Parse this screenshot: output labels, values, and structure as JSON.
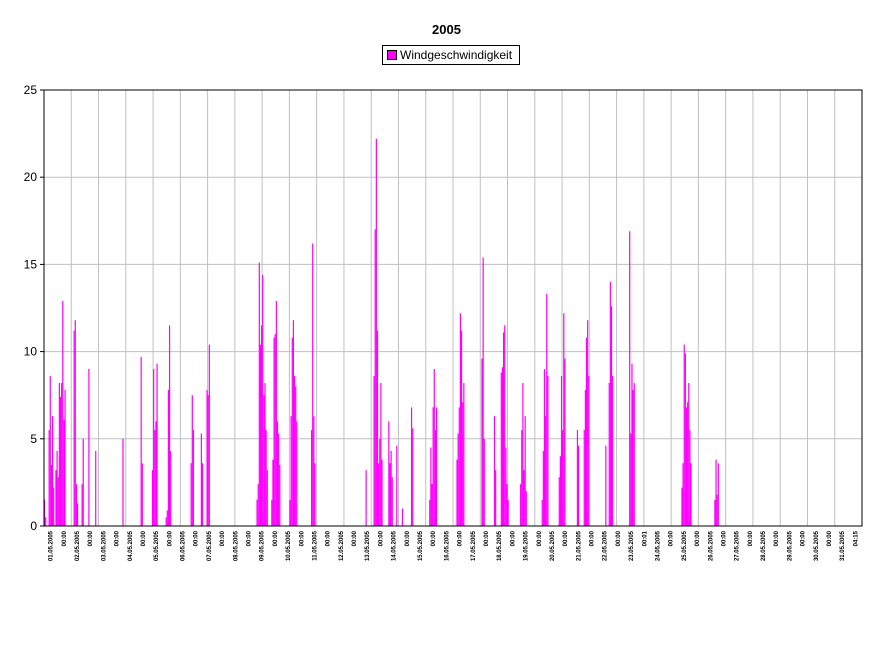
{
  "chart_data": {
    "type": "bar",
    "title": "2005",
    "xlabel": "",
    "ylabel": "",
    "ylim": [
      0,
      25
    ],
    "yticks": [
      0,
      5,
      10,
      15,
      20,
      25
    ],
    "grid": true,
    "legend_position": "top-center",
    "series": [
      {
        "name": "Windgeschwindigkeit",
        "color": "#ff00ff",
        "start_label": "01.05.2005",
        "end_label": "31.05.2005 04:15",
        "hours": [
          1.5,
          0.5,
          0,
          0,
          5.5,
          8.6,
          3.5,
          6.3,
          2.2,
          0,
          3.2,
          4.3,
          2.8,
          8.2,
          7.4,
          8.2,
          12.9,
          6.1,
          7.8,
          0,
          0,
          0,
          0,
          0,
          0,
          0,
          11.2,
          11.8,
          2.4,
          1.3,
          0,
          0,
          0,
          2.4,
          5.0,
          0,
          0,
          0,
          0,
          9.0,
          0,
          0,
          0,
          0,
          0,
          4.3,
          0,
          0,
          0,
          0,
          0,
          0,
          0,
          0,
          0,
          0,
          0,
          0,
          0,
          0,
          0,
          0,
          0,
          0,
          0,
          0,
          0,
          0,
          0,
          5.0,
          0,
          0,
          0,
          0,
          0,
          0,
          0,
          0,
          0,
          0,
          0,
          0,
          0,
          0,
          0,
          9.7,
          3.6,
          0,
          0,
          0,
          0,
          0,
          0,
          0,
          0,
          3.2,
          9.0,
          5.5,
          6.0,
          9.3,
          0,
          0,
          0,
          0,
          0,
          0,
          0,
          0.5,
          0.9,
          7.8,
          11.5,
          4.3,
          0,
          0,
          0,
          0,
          0,
          0,
          0,
          0,
          0,
          0,
          0,
          0,
          0,
          0,
          0,
          0,
          0,
          3.6,
          7.5,
          5.5,
          0,
          0,
          0,
          0,
          0,
          0,
          5.3,
          3.6,
          0,
          0,
          0,
          7.8,
          7.5,
          10.4,
          0,
          0,
          0,
          0,
          0,
          0,
          0,
          0,
          0,
          0,
          0,
          0,
          0,
          0,
          0,
          0,
          0,
          0,
          0,
          0,
          0,
          0,
          0,
          0,
          0,
          0,
          0,
          0,
          0,
          0,
          0,
          0,
          0,
          0,
          0,
          0,
          0,
          0,
          0,
          0,
          0,
          1.5,
          2.4,
          15.1,
          10.4,
          11.5,
          14.4,
          7.5,
          8.2,
          5.5,
          3.2,
          0,
          0,
          0,
          1.5,
          3.8,
          10.8,
          11.0,
          12.9,
          6.0,
          5.3,
          3.5,
          0,
          0,
          0,
          0,
          0,
          0,
          0,
          0,
          1.5,
          6.3,
          10.8,
          11.8,
          8.6,
          8.0,
          6.0,
          0,
          0,
          0,
          0,
          0,
          0,
          0,
          0,
          0,
          0,
          0,
          0,
          5.5,
          16.2,
          6.3,
          3.6,
          0,
          0,
          0,
          0,
          0,
          0,
          0,
          0,
          0,
          0,
          0,
          0,
          0,
          0,
          0,
          0,
          0,
          0,
          0,
          0,
          0,
          0,
          0,
          0,
          0,
          0,
          0,
          0,
          0,
          0,
          0,
          0,
          0,
          0,
          0,
          0,
          0,
          0,
          0,
          0,
          0,
          0,
          0,
          0,
          3.2,
          0,
          0,
          0,
          0,
          0,
          0,
          8.6,
          17.0,
          22.2,
          11.2,
          3.6,
          5.0,
          8.2,
          3.8,
          0,
          0,
          0,
          0,
          0,
          6.0,
          3.6,
          4.3,
          2.8,
          0,
          0,
          0,
          4.6,
          0,
          0,
          0,
          0,
          1.0,
          0,
          0,
          0,
          0,
          0,
          0,
          0,
          6.8,
          5.6,
          0,
          0,
          0,
          0,
          0,
          0,
          0,
          0,
          0,
          0,
          0,
          0,
          0,
          0,
          1.5,
          4.5,
          2.4,
          6.8,
          9.0,
          5.5,
          6.8,
          0,
          0,
          0,
          0,
          0,
          0,
          0,
          0,
          0,
          0,
          0,
          0,
          0,
          0,
          0,
          0,
          0,
          3.8,
          5.3,
          6.8,
          12.2,
          11.2,
          7.1,
          8.2,
          0,
          0,
          0,
          0,
          0,
          0,
          0,
          0,
          0,
          0,
          0,
          0,
          0,
          0,
          0,
          9.6,
          15.4,
          5.0,
          0,
          0,
          0,
          0,
          0,
          0,
          0,
          0,
          6.3,
          3.2,
          0,
          0,
          0,
          0,
          8.8,
          9.1,
          11.1,
          11.5,
          4.5,
          2.4,
          1.5,
          0,
          0,
          0,
          0,
          0,
          0,
          0,
          0,
          0,
          0,
          2.4,
          5.5,
          8.2,
          3.2,
          6.3,
          2.0,
          0,
          0,
          0,
          0,
          0,
          0,
          0,
          0,
          0,
          0,
          0,
          0,
          0,
          1.5,
          4.3,
          9.0,
          6.3,
          13.3,
          8.6,
          0,
          0,
          0,
          0,
          0,
          0,
          0,
          0,
          0,
          2.8,
          4.0,
          8.6,
          5.5,
          12.2,
          9.6,
          0,
          0,
          0,
          0,
          0,
          0,
          0,
          0,
          0,
          0,
          5.5,
          4.6,
          0,
          0,
          0,
          0,
          5.5,
          7.8,
          10.8,
          11.8,
          8.6,
          0,
          0,
          0,
          0,
          0,
          0,
          0,
          0,
          0,
          0,
          0,
          0,
          0,
          0,
          4.6,
          0,
          0,
          8.2,
          14.0,
          12.6,
          8.6,
          0,
          0,
          0,
          0,
          0,
          0,
          0,
          0,
          0,
          0,
          0,
          0,
          0,
          0,
          16.9,
          5.3,
          9.3,
          7.8,
          8.2,
          0,
          0,
          0,
          0,
          0,
          0,
          0,
          0,
          0,
          0,
          0,
          0,
          0,
          0,
          0,
          0,
          0,
          0,
          0,
          0,
          0,
          0,
          0,
          0,
          0,
          0,
          0,
          0,
          0,
          0,
          0,
          0,
          0,
          0,
          0,
          0,
          0,
          0,
          0,
          0,
          0,
          2.2,
          3.6,
          10.4,
          9.9,
          6.8,
          7.1,
          8.2,
          5.5,
          3.6,
          0,
          0,
          0,
          0,
          0,
          0,
          0,
          0,
          0,
          0,
          0,
          0,
          0,
          0,
          0,
          0,
          0,
          0,
          0,
          0,
          1.5,
          3.8,
          1.8,
          3.6,
          0,
          0,
          0,
          0,
          0,
          0,
          0,
          0,
          0,
          0,
          0,
          0,
          0,
          0,
          0,
          0,
          0,
          0,
          0,
          0,
          0,
          0,
          0,
          0,
          0,
          0,
          0,
          0,
          0,
          0,
          0,
          0,
          0,
          0,
          0,
          0,
          0,
          0,
          0,
          0,
          0,
          0,
          0,
          0,
          0,
          0,
          0,
          0,
          0,
          0,
          0,
          0,
          0,
          0,
          0,
          0,
          0,
          0,
          0,
          0,
          0,
          0,
          0,
          0,
          0,
          0,
          0,
          0,
          0,
          0,
          0,
          0,
          0,
          0,
          0,
          0,
          0,
          0,
          0,
          0,
          0,
          0,
          0,
          0,
          0,
          0,
          0,
          0,
          0,
          0,
          0,
          0,
          0,
          0,
          0,
          0,
          0,
          0,
          0,
          0,
          0,
          0,
          0,
          0,
          0,
          0,
          0,
          0,
          0,
          0,
          0,
          0,
          0,
          0,
          0,
          0,
          0,
          0,
          0,
          0,
          0,
          0,
          0,
          0,
          0,
          0,
          0,
          0,
          0,
          0,
          0,
          0,
          0,
          0,
          0,
          0,
          0,
          0,
          0,
          0,
          0,
          0,
          0,
          0,
          0,
          0,
          0,
          0,
          0,
          0
        ]
      }
    ],
    "x_tick_labels": [
      "01.05.2005",
      "00:00",
      "02.05.2005",
      "00:00",
      "03.05.2005",
      "00:00",
      "04.05.2005",
      "00:00",
      "05.05.2005",
      "00:00",
      "06.05.2005",
      "00:00",
      "07.05.2005",
      "00:00",
      "08.05.2005",
      "00:00",
      "09.05.2005",
      "00:00",
      "10.05.2005",
      "00:00",
      "11.05.2005",
      "00:00",
      "12.05.2005",
      "00:00",
      "13.05.2005",
      "00:00",
      "14.05.2005",
      "00:00",
      "15.05.2005",
      "00:00",
      "16.05.2005",
      "00:00",
      "17.05.2005",
      "00:00",
      "18.05.2005",
      "00:00",
      "19.05.2005",
      "00:00",
      "20.05.2005",
      "00:00",
      "21.05.2005",
      "00:00",
      "22.05.2005",
      "00:00",
      "23.05.2005",
      "00:01",
      "24.05.2005",
      "00:00",
      "25.05.2005",
      "00:00",
      "26.05.2005",
      "00:00",
      "27.05.2005",
      "00:00",
      "28.05.2005",
      "00:00",
      "29.05.2005",
      "00:00",
      "30.05.2005",
      "00:00",
      "31.05.2005",
      "04:15"
    ]
  }
}
